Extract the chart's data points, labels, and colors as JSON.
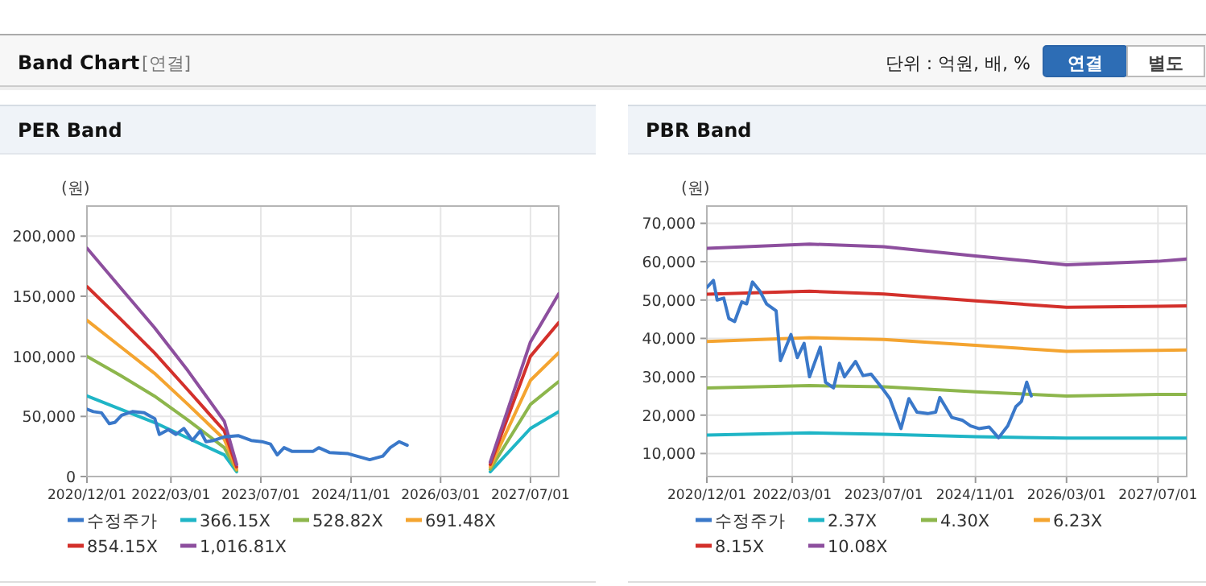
{
  "chart_data": [
    {
      "type": "other",
      "title": "Band Chart",
      "subtitle": "[연결]",
      "annotations": [
        "단위 : 억원, 배, %",
        "연결",
        "별도"
      ]
    },
    {
      "type": "line",
      "title": "PER Band",
      "ylabel": "(원)",
      "grid": true,
      "legend": "bottom",
      "xlim": [
        "2020-12-01",
        "2027-12-01"
      ],
      "ylim": [
        0,
        225000
      ],
      "xticks": [
        {
          "value": "2020-12-01",
          "label": "2020/12/01"
        },
        {
          "value": "2022-03-01",
          "label": "2022/03/01"
        },
        {
          "value": "2023-07-01",
          "label": "2023/07/01"
        },
        {
          "value": "2024-11-01",
          "label": "2024/11/01"
        },
        {
          "value": "2026-03-01",
          "label": "2026/03/01"
        },
        {
          "value": "2027-07-01",
          "label": "2027/07/01"
        }
      ],
      "yticks": [
        0,
        {
          "value": 50000,
          "label": "50,000"
        },
        {
          "value": 100000,
          "label": "100,000"
        },
        {
          "value": 150000,
          "label": "150,000"
        },
        {
          "value": 200000,
          "label": "200,000"
        }
      ],
      "x": [
        "2020-12-01",
        "2021-06-01",
        "2021-12-01",
        "2022-06-01",
        "2022-12-15",
        "2023-02-20",
        "2025-01-01",
        "2026-11-25",
        "2027-07-01",
        "2027-12-01"
      ],
      "series": [
        {
          "name": "수정주가",
          "color": "#3a78c9",
          "x": [
            "2020-12-01",
            "2021-01-05",
            "2021-02-18",
            "2021-04-01",
            "2021-05-01",
            "2021-06-07",
            "2021-08-04",
            "2021-10-07",
            "2021-12-04",
            "2021-12-28",
            "2022-02-15",
            "2022-03-28",
            "2022-05-10",
            "2022-06-25",
            "2022-08-07",
            "2022-09-07",
            "2022-10-19",
            "2022-12-16",
            "2023-02-28",
            "2023-05-10",
            "2023-07-07",
            "2023-08-22",
            "2023-09-28",
            "2023-11-04",
            "2023-12-16",
            "2024-04-10",
            "2024-05-10",
            "2024-07-07",
            "2024-10-16",
            "2025-02-10",
            "2025-04-22",
            "2025-06-01",
            "2025-07-20",
            "2025-09-01"
          ],
          "values": [
            56000,
            54000,
            53000,
            44000,
            45000,
            51000,
            54000,
            53000,
            48000,
            35000,
            39000,
            35000,
            40000,
            30000,
            38000,
            29000,
            30000,
            33000,
            34000,
            30000,
            29000,
            27000,
            18000,
            24000,
            21000,
            21000,
            24000,
            20000,
            19000,
            14000,
            17000,
            24000,
            29000,
            26000
          ]
        },
        {
          "name": "366.15X",
          "color": "#1fb5c6",
          "values": [
            67000,
            56000,
            45000,
            32000,
            18000,
            4000,
            null,
            4000,
            40000,
            54000
          ]
        },
        {
          "name": "528.82X",
          "color": "#8db64c",
          "values": [
            100000,
            84000,
            67000,
            47000,
            24000,
            5000,
            null,
            6000,
            60000,
            79000
          ]
        },
        {
          "name": "691.48X",
          "color": "#f4a430",
          "values": [
            130000,
            108000,
            86000,
            60000,
            31000,
            6000,
            null,
            8000,
            80000,
            103000
          ]
        },
        {
          "name": "854.15X",
          "color": "#d3302b",
          "values": [
            158000,
            131000,
            103000,
            72000,
            38000,
            8000,
            null,
            10000,
            100000,
            128000
          ]
        },
        {
          "name": "1,016.81X",
          "color": "#8d4f9e",
          "values": [
            190000,
            157000,
            124000,
            88000,
            46000,
            10000,
            null,
            12000,
            112000,
            152000
          ]
        }
      ]
    },
    {
      "type": "line",
      "title": "PBR Band",
      "ylabel": "(원)",
      "grid": true,
      "legend": "bottom",
      "xlim": [
        "2020-12-01",
        "2027-12-01"
      ],
      "ylim": [
        4000,
        74500
      ],
      "xticks": [
        {
          "value": "2020-12-01",
          "label": "2020/12/01"
        },
        {
          "value": "2022-03-01",
          "label": "2022/03/01"
        },
        {
          "value": "2023-07-01",
          "label": "2023/07/01"
        },
        {
          "value": "2024-11-01",
          "label": "2024/11/01"
        },
        {
          "value": "2026-03-01",
          "label": "2026/03/01"
        },
        {
          "value": "2027-07-01",
          "label": "2027/07/01"
        }
      ],
      "yticks": [
        {
          "value": 10000,
          "label": "10,000"
        },
        {
          "value": 20000,
          "label": "20,000"
        },
        {
          "value": 30000,
          "label": "30,000"
        },
        {
          "value": 40000,
          "label": "40,000"
        },
        {
          "value": 50000,
          "label": "50,000"
        },
        {
          "value": 60000,
          "label": "60,000"
        },
        {
          "value": 70000,
          "label": "70,000"
        }
      ],
      "x": [
        "2020-12-01",
        "2022-06-01",
        "2023-07-01",
        "2024-11-01",
        "2026-03-01",
        "2027-07-01",
        "2027-12-01"
      ],
      "series": [
        {
          "name": "수정주가",
          "color": "#3a78c9",
          "x": [
            "2020-12-01",
            "2021-01-05",
            "2021-01-25",
            "2021-03-01",
            "2021-03-28",
            "2021-04-28",
            "2021-06-05",
            "2021-07-01",
            "2021-08-01",
            "2021-09-10",
            "2021-10-15",
            "2021-12-05",
            "2021-12-28",
            "2022-02-22",
            "2022-03-28",
            "2022-05-03",
            "2022-06-01",
            "2022-07-28",
            "2022-08-25",
            "2022-10-07",
            "2022-11-07",
            "2022-12-04",
            "2023-02-01",
            "2023-03-13",
            "2023-04-25",
            "2023-06-22",
            "2023-08-03",
            "2023-10-01",
            "2023-11-12",
            "2023-12-25",
            "2024-02-20",
            "2024-04-03",
            "2024-04-25",
            "2024-06-28",
            "2024-08-22",
            "2024-10-06",
            "2024-11-19",
            "2025-01-13",
            "2025-03-04",
            "2025-04-22",
            "2025-06-04",
            "2025-07-04",
            "2025-08-01",
            "2025-08-25"
          ],
          "values": [
            53300,
            55100,
            50000,
            50500,
            45200,
            44400,
            49500,
            49000,
            54700,
            52300,
            49000,
            47200,
            34200,
            41000,
            35000,
            38700,
            30000,
            37700,
            28600,
            27100,
            33500,
            30000,
            34000,
            30300,
            30700,
            27100,
            24300,
            16500,
            24300,
            20800,
            20400,
            20800,
            24600,
            19400,
            18700,
            17200,
            16500,
            16900,
            14100,
            17200,
            22200,
            23600,
            28600,
            25000
          ]
        },
        {
          "name": "2.37X",
          "color": "#1fb5c6",
          "values": [
            14800,
            15400,
            15000,
            14400,
            14000,
            14000,
            14000
          ]
        },
        {
          "name": "4.30X",
          "color": "#8db64c",
          "values": [
            27100,
            27700,
            27400,
            26100,
            25000,
            25400,
            25400
          ]
        },
        {
          "name": "6.23X",
          "color": "#f4a430",
          "values": [
            39200,
            40200,
            39700,
            38200,
            36600,
            36900,
            37000
          ]
        },
        {
          "name": "8.15X",
          "color": "#d3302b",
          "values": [
            51500,
            52300,
            51600,
            49800,
            48100,
            48400,
            48500
          ]
        },
        {
          "name": "10.08X",
          "color": "#8d4f9e",
          "values": [
            63500,
            64600,
            63900,
            61500,
            59200,
            60100,
            60700
          ]
        }
      ]
    }
  ]
}
